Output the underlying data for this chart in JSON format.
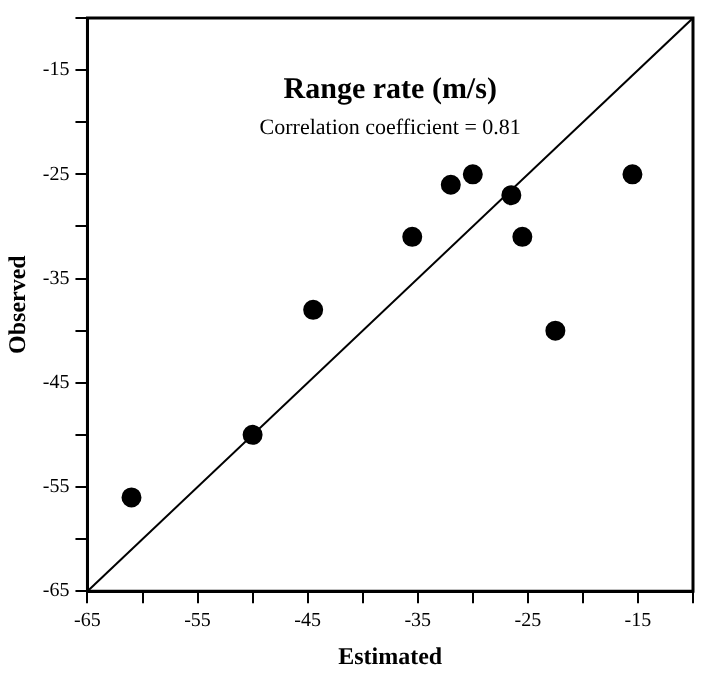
{
  "chart_data": {
    "type": "scatter",
    "title": "Range rate (m/s)",
    "annotations": [
      "Correlation coefficient = 0.81"
    ],
    "xlabel": "Estimated",
    "ylabel": "Observed",
    "x": [
      -61,
      -50,
      -44.5,
      -35.5,
      -32,
      -30,
      -26.5,
      -25.5,
      -22.5,
      -15.5
    ],
    "values": [
      -56,
      -50,
      -38,
      -31,
      -26,
      -25,
      -27,
      -31,
      -40,
      -25
    ],
    "color": "#000000",
    "marker": "circle",
    "series": [
      {
        "type": "line",
        "x": [
          -65,
          -10
        ],
        "values": [
          -65,
          -10
        ],
        "color": "#000000",
        "marker": "none"
      }
    ],
    "xlim": [
      -65,
      -10
    ],
    "ylim": [
      -65,
      -10
    ],
    "xticks": [
      -65,
      {
        "value": -60,
        "label": null
      },
      -55,
      {
        "value": -50,
        "label": null
      },
      -45,
      {
        "value": -40,
        "label": null
      },
      -35,
      {
        "value": -30,
        "label": null
      },
      -25,
      {
        "value": -20,
        "label": null
      },
      -15,
      {
        "value": -10,
        "label": null
      }
    ],
    "yticks": [
      -65,
      {
        "value": -60,
        "label": null
      },
      -55,
      {
        "value": -50,
        "label": null
      },
      -45,
      {
        "value": -40,
        "label": null
      },
      -35,
      {
        "value": -30,
        "label": null
      },
      -25,
      {
        "value": -20,
        "label": null
      },
      -15,
      {
        "value": -10,
        "label": null
      }
    ],
    "grid": false,
    "legend": false
  }
}
